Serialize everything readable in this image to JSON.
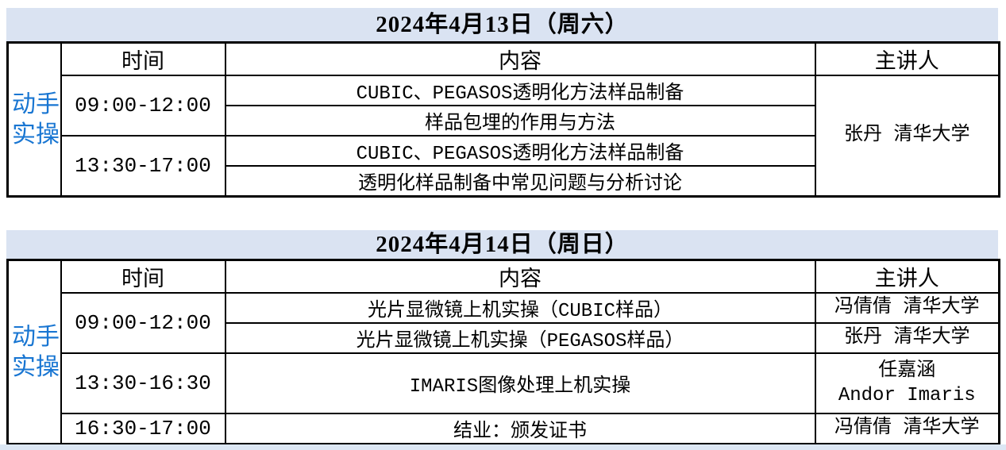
{
  "colors": {
    "accent_blue": "#1976d2",
    "title_bg": "#dae3f2",
    "bottom_strip": "#dce7f4",
    "border": "#000000"
  },
  "day1": {
    "title": "2024年4月13日（周六）",
    "side_label": {
      "line1": "动手",
      "line2": "实操"
    },
    "headers": {
      "time": "时间",
      "content": "内容",
      "speaker": "主讲人"
    },
    "morning": {
      "time": "09:00-12:00",
      "content_1": "CUBIC、PEGASOS透明化方法样品制备",
      "content_2": "样品包埋的作用与方法"
    },
    "afternoon": {
      "time": "13:30-17:00",
      "content_1": "CUBIC、PEGASOS透明化方法样品制备",
      "content_2": "透明化样品制备中常见问题与分析讨论"
    },
    "speaker_all": "张丹 清华大学"
  },
  "day2": {
    "title": "2024年4月14日（周日）",
    "side_label": {
      "line1": "动手",
      "line2": "实操"
    },
    "headers": {
      "time": "时间",
      "content": "内容",
      "speaker": "主讲人"
    },
    "morning": {
      "time": "09:00-12:00",
      "session_1": {
        "content": "光片显微镜上机实操（CUBIC样品）",
        "speaker": "冯倩倩 清华大学"
      },
      "session_2": {
        "content": "光片显微镜上机实操（PEGASOS样品）",
        "speaker": "张丹 清华大学"
      }
    },
    "afternoon": {
      "time": "13:30-16:30",
      "content": "IMARIS图像处理上机实操",
      "speaker_line1": "任嘉涵",
      "speaker_line2": "Andor Imaris"
    },
    "closing": {
      "time": "16:30-17:00",
      "content": "结业：颁发证书",
      "speaker": "冯倩倩 清华大学"
    }
  }
}
